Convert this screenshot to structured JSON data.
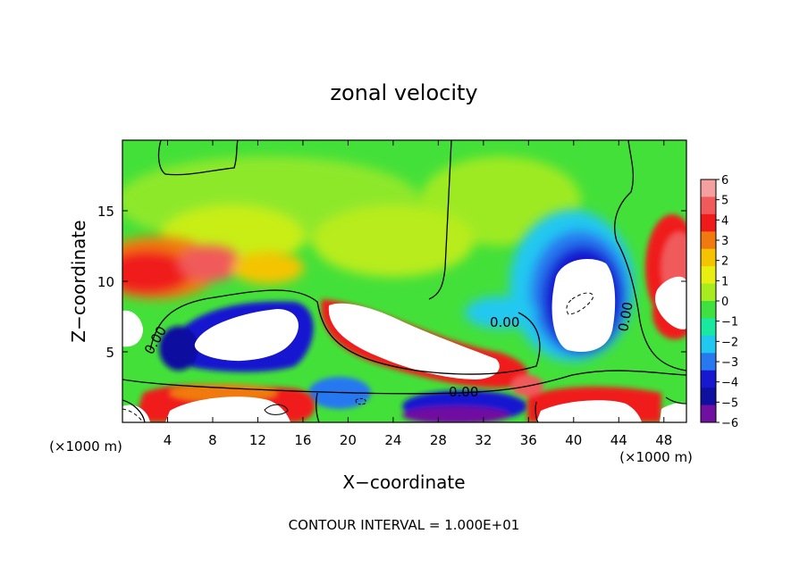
{
  "chart_data": {
    "type": "heatmap",
    "title": "zonal velocity",
    "xlabel": "X−coordinate",
    "ylabel": "Z−coordinate",
    "x_unit_left": "(×1000 m)",
    "x_unit_right": "(×1000 m)",
    "footer": "CONTOUR INTERVAL = 1.000E+01",
    "xlim": [
      0,
      50
    ],
    "ylim": [
      0,
      20
    ],
    "x_ticks": [
      4,
      8,
      12,
      16,
      20,
      24,
      28,
      32,
      36,
      40,
      44,
      48
    ],
    "y_ticks": [
      5,
      10,
      15
    ],
    "x_tick_labels": [
      "4",
      "8",
      "12",
      "16",
      "20",
      "24",
      "28",
      "32",
      "36",
      "40",
      "44",
      "48"
    ],
    "y_tick_labels": [
      "5",
      "10",
      "15"
    ],
    "colorbar": {
      "levels": [
        6,
        5,
        4,
        3,
        2,
        1,
        0,
        -1,
        -2,
        -3,
        -4,
        -5,
        -6
      ],
      "labels": [
        "6",
        "5",
        "4",
        "3",
        "2",
        "1",
        "0",
        "−1",
        "−2",
        "−3",
        "−4",
        "−5",
        "−6"
      ],
      "colors": [
        "#f4a0a0",
        "#f05a5a",
        "#f01a1a",
        "#f07a10",
        "#f5c400",
        "#e8ee10",
        "#a8ec20",
        "#40e040",
        "#18e8a0",
        "#20c8f0",
        "#2878f0",
        "#1818d0",
        "#1010a0",
        "#7010a0"
      ]
    },
    "contour_labels": [
      "0.00",
      "0.00",
      "0.00",
      "0.00"
    ],
    "background": "#44e03a"
  }
}
